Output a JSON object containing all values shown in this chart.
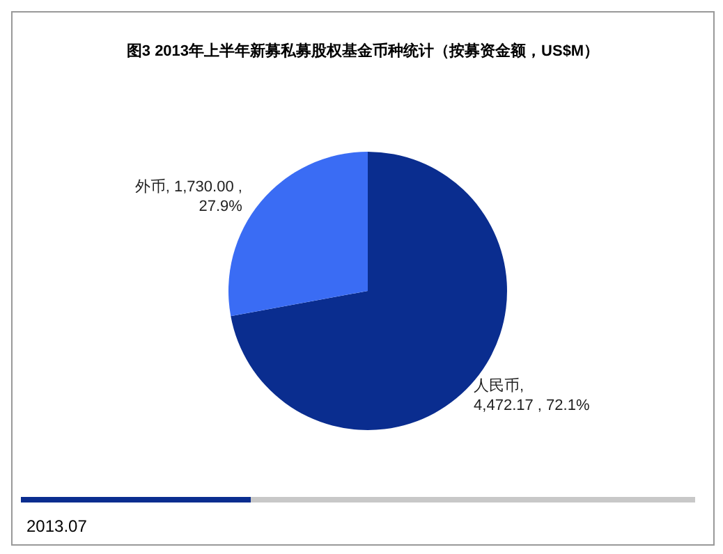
{
  "chart_data": {
    "type": "pie",
    "title": "图3 2013年上半年新募私募股权基金币种统计（按募资金额，US$M）",
    "categories": [
      "人民币",
      "外币"
    ],
    "values": [
      4472.17,
      1730.0
    ],
    "value_labels": [
      ", 4,472.17 , 72.1%",
      ", 1,730.00 , 27.9%"
    ],
    "colors": [
      "#0a2d8f",
      "#3a6cf4"
    ],
    "annotations": [
      "2013.07"
    ]
  }
}
